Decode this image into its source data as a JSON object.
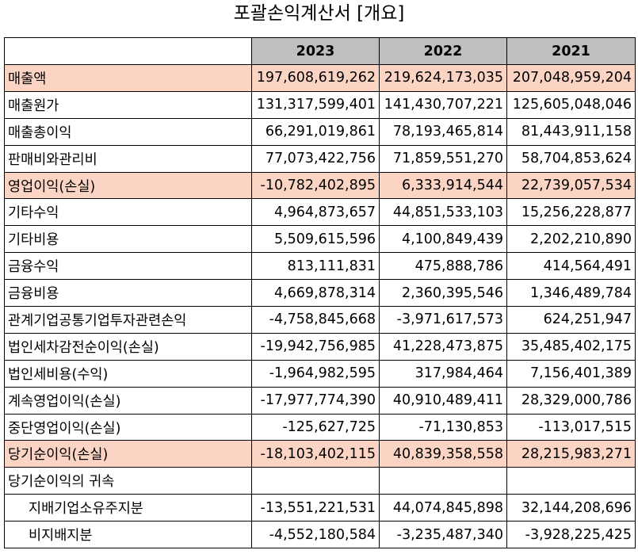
{
  "title": "포괄손익계산서 [개요]",
  "columns": [
    "2023",
    "2022",
    "2021"
  ],
  "highlight_color": "#fbd4c3",
  "header_color": "#bfbfbf",
  "rows": [
    {
      "label": "매출액",
      "v2023": "197,608,619,262",
      "v2022": "219,624,173,035",
      "v2021": "207,048,959,204",
      "highlight": true
    },
    {
      "label": "매출원가",
      "v2023": "131,317,599,401",
      "v2022": "141,430,707,221",
      "v2021": "125,605,048,046"
    },
    {
      "label": "매출총이익",
      "v2023": "66,291,019,861",
      "v2022": "78,193,465,814",
      "v2021": "81,443,911,158"
    },
    {
      "label": "판매비와관리비",
      "v2023": "77,073,422,756",
      "v2022": "71,859,551,270",
      "v2021": "58,704,853,624"
    },
    {
      "label": "영업이익(손실)",
      "v2023": "-10,782,402,895",
      "v2022": "6,333,914,544",
      "v2021": "22,739,057,534",
      "highlight": true
    },
    {
      "label": "기타수익",
      "v2023": "4,964,873,657",
      "v2022": "44,851,533,103",
      "v2021": "15,256,228,877"
    },
    {
      "label": "기타비용",
      "v2023": "5,509,615,596",
      "v2022": "4,100,849,439",
      "v2021": "2,202,210,890"
    },
    {
      "label": "금융수익",
      "v2023": "813,111,831",
      "v2022": "475,888,786",
      "v2021": "414,564,491"
    },
    {
      "label": "금융비용",
      "v2023": "4,669,878,314",
      "v2022": "2,360,395,546",
      "v2021": "1,346,489,784"
    },
    {
      "label": "관계기업공통기업투자관련손익",
      "v2023": "-4,758,845,668",
      "v2022": "-3,971,617,573",
      "v2021": "624,251,947"
    },
    {
      "label": "법인세차감전순이익(손실)",
      "v2023": "-19,942,756,985",
      "v2022": "41,228,473,875",
      "v2021": "35,485,402,175"
    },
    {
      "label": "법인세비용(수익)",
      "v2023": "-1,964,982,595",
      "v2022": "317,984,464",
      "v2021": "7,156,401,389"
    },
    {
      "label": "계속영업이익(손실)",
      "v2023": "-17,977,774,390",
      "v2022": "40,910,489,411",
      "v2021": "28,329,000,786"
    },
    {
      "label": "중단영업이익(손실)",
      "v2023": "-125,627,725",
      "v2022": "-71,130,853",
      "v2021": "-113,017,515"
    },
    {
      "label": "당기순이익(손실)",
      "v2023": "-18,103,402,115",
      "v2022": "40,839,358,558",
      "v2021": "28,215,983,271",
      "highlight": true
    },
    {
      "label": "당기순이익의 귀속",
      "v2023": "",
      "v2022": "",
      "v2021": ""
    },
    {
      "label": "지배기업소유주지분",
      "v2023": "-13,551,221,531",
      "v2022": "44,074,845,898",
      "v2021": "32,144,208,696",
      "indent": true
    },
    {
      "label": "비지배지분",
      "v2023": "-4,552,180,584",
      "v2022": "-3,235,487,340",
      "v2021": "-3,928,225,425",
      "indent": true
    }
  ]
}
